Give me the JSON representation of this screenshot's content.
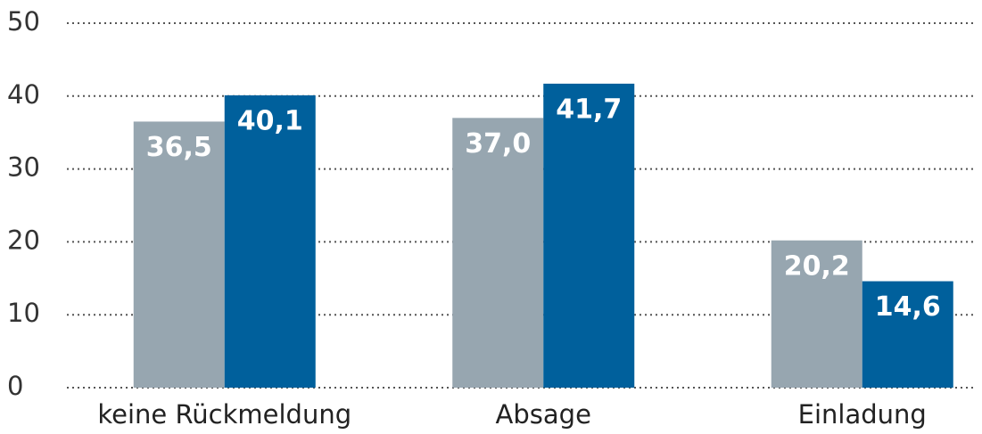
{
  "chart_data": {
    "type": "bar",
    "categories": [
      "keine Rückmeldung",
      "Absage",
      "Einladung"
    ],
    "series": [
      {
        "color": "#97a6b0",
        "values": [
          36.5,
          37.0,
          20.2
        ],
        "value_labels": [
          "36,5",
          "37,0",
          "20,2"
        ]
      },
      {
        "color": "#00609c",
        "values": [
          40.1,
          41.7,
          14.6
        ],
        "value_labels": [
          "40,1",
          "41,7",
          "14,6"
        ]
      }
    ],
    "ylim": [
      0,
      50
    ],
    "yticks": [
      0,
      10,
      20,
      30,
      40,
      50
    ],
    "grid": true
  }
}
